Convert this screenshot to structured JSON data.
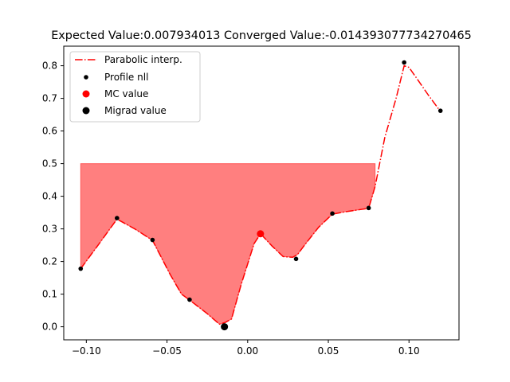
{
  "chart_data": {
    "type": "line",
    "title": "Expected Value:0.007934013 Converged Value:-0.014393077734270465",
    "xlabel": "",
    "ylabel": "",
    "xlim": [
      -0.114,
      0.131
    ],
    "ylim": [
      -0.04,
      0.86
    ],
    "x_ticks": [
      -0.1,
      -0.05,
      0.0,
      0.05,
      0.1
    ],
    "x_tick_labels": [
      "−0.10",
      "−0.05",
      "0.00",
      "0.05",
      "0.10"
    ],
    "y_ticks": [
      0.0,
      0.1,
      0.2,
      0.3,
      0.4,
      0.5,
      0.6,
      0.7,
      0.8
    ],
    "y_tick_labels": [
      "0.0",
      "0.1",
      "0.2",
      "0.3",
      "0.4",
      "0.5",
      "0.6",
      "0.7",
      "0.8"
    ],
    "grid": false,
    "legend_position": "top-left",
    "colors": {
      "interp": "#ff0000",
      "fill": "#ff0000",
      "profile": "#000000",
      "mc": "#ff0000",
      "migrad": "#000000"
    },
    "series": [
      {
        "name": "Parabolic interp.",
        "style": "dashdot",
        "x": [
          -0.1035,
          -0.092,
          -0.081,
          -0.07,
          -0.059,
          -0.048,
          -0.041,
          -0.036,
          -0.025,
          -0.0175,
          -0.014,
          -0.01,
          -0.004,
          0.004,
          0.008,
          0.015,
          0.022,
          0.028,
          0.031,
          0.036,
          0.044,
          0.0525,
          0.06,
          0.075,
          0.079,
          0.085,
          0.092,
          0.097,
          0.1,
          0.105,
          0.112,
          0.1195
        ],
        "y": [
          0.178,
          0.255,
          0.33,
          0.3,
          0.265,
          0.16,
          0.1,
          0.082,
          0.04,
          0.008,
          0.013,
          0.024,
          0.13,
          0.255,
          0.285,
          0.248,
          0.215,
          0.213,
          0.222,
          0.255,
          0.305,
          0.345,
          0.352,
          0.363,
          0.43,
          0.58,
          0.7,
          0.8,
          0.795,
          0.76,
          0.71,
          0.66
        ]
      },
      {
        "name": "Profile nll",
        "x": [
          -0.1035,
          -0.081,
          -0.059,
          -0.036,
          0.03,
          0.0525,
          0.075,
          0.097,
          0.1195
        ],
        "y": [
          0.178,
          0.333,
          0.266,
          0.083,
          0.208,
          0.347,
          0.364,
          0.81,
          0.662
        ]
      },
      {
        "name": "MC value",
        "x": [
          0.007934013
        ],
        "y": [
          0.285
        ]
      },
      {
        "name": "Migrad value",
        "x": [
          -0.014393077734270465
        ],
        "y": [
          0.0
        ]
      }
    ],
    "fill_region": {
      "x": [
        -0.1035,
        -0.092,
        -0.081,
        -0.07,
        -0.059,
        -0.048,
        -0.041,
        -0.036,
        -0.025,
        -0.0175,
        -0.014,
        -0.01,
        -0.004,
        0.004,
        0.008,
        0.015,
        0.022,
        0.028,
        0.031,
        0.036,
        0.044,
        0.0525,
        0.06,
        0.075,
        0.079
      ],
      "y": [
        0.178,
        0.255,
        0.33,
        0.3,
        0.265,
        0.16,
        0.1,
        0.082,
        0.04,
        0.008,
        0.013,
        0.024,
        0.13,
        0.255,
        0.285,
        0.248,
        0.215,
        0.213,
        0.222,
        0.255,
        0.305,
        0.345,
        0.352,
        0.363,
        0.43
      ],
      "upper": 0.5
    },
    "legend": [
      {
        "label": "Parabolic interp.",
        "marker": "dashdot-line"
      },
      {
        "label": "Profile nll",
        "marker": "small-dot"
      },
      {
        "label": "MC value",
        "marker": "red-dot"
      },
      {
        "label": "Migrad value",
        "marker": "black-dot"
      }
    ]
  }
}
